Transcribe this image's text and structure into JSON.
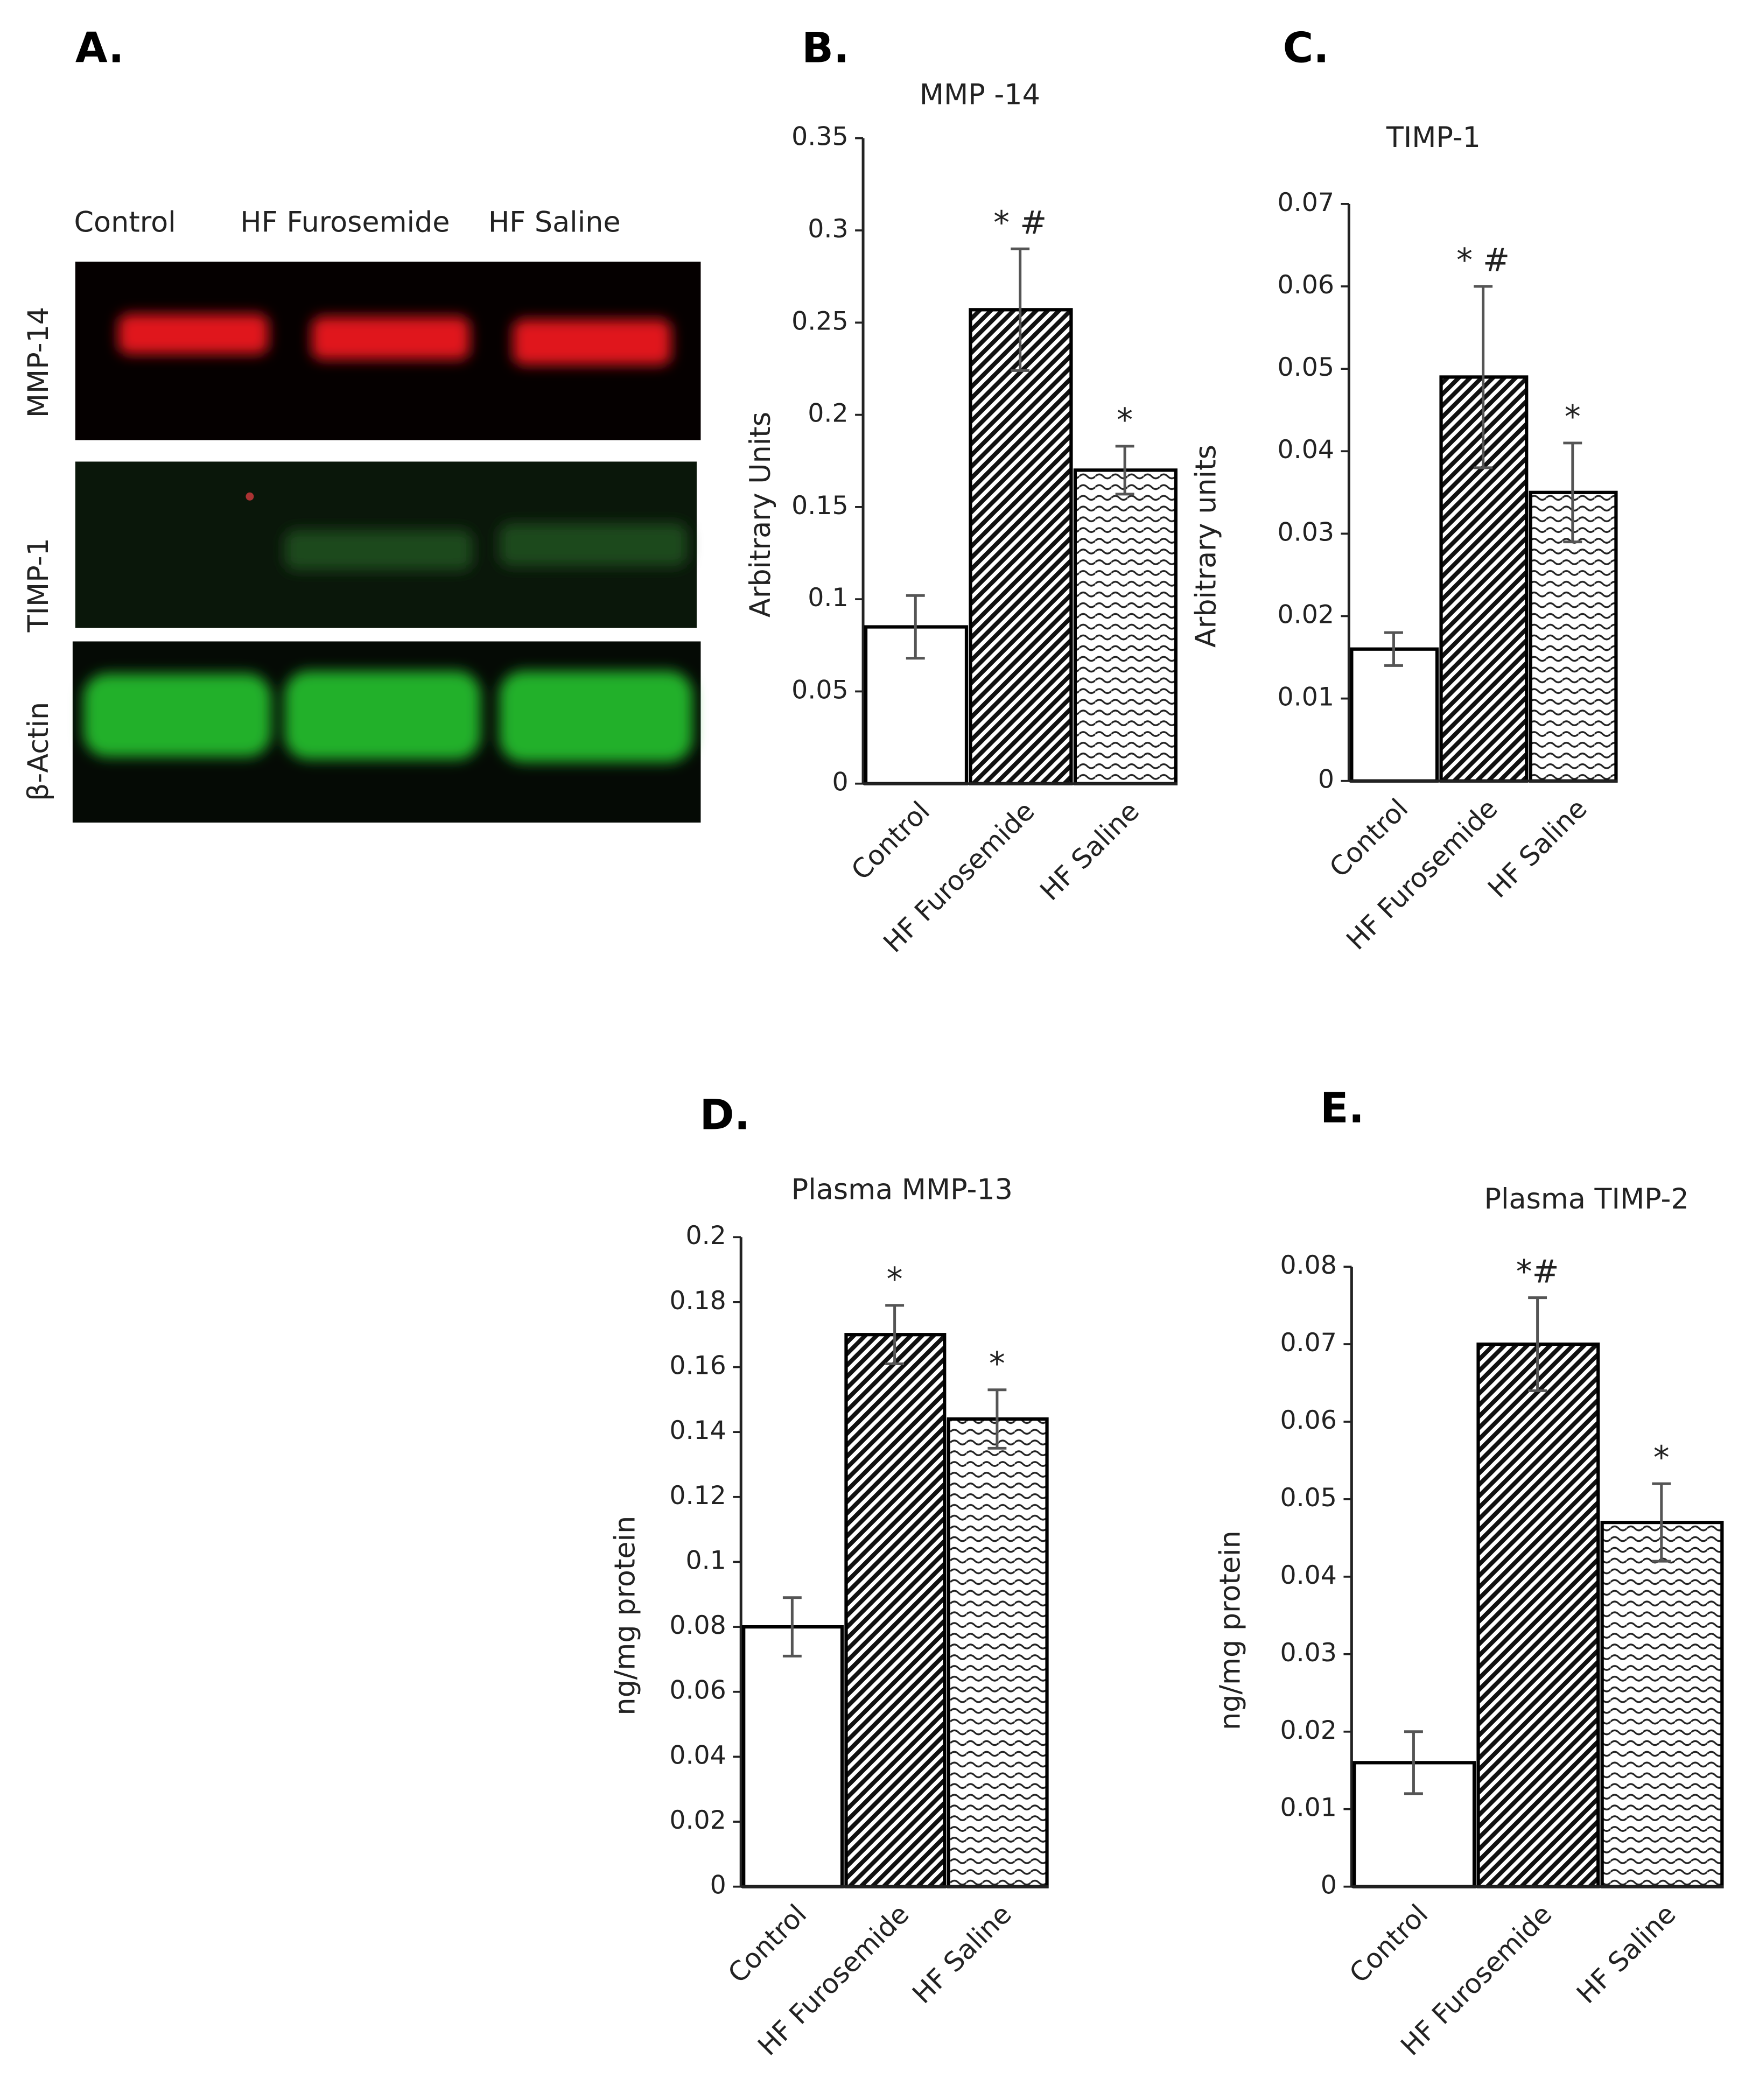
{
  "blot": {
    "label": "A.",
    "lanes": [
      "Control",
      "HF Furosemide",
      "HF Saline"
    ],
    "rows": [
      "MMP-14",
      "TIMP-1",
      "β-Actin"
    ]
  },
  "chart_data": [
    {
      "type": "bar",
      "label": "B.",
      "title": "MMP -14",
      "ylabel": "Arbitrary Units",
      "categories": [
        "Control",
        "HF Furosemide",
        "HF Saline"
      ],
      "values": [
        0.085,
        0.257,
        0.17
      ],
      "errors": [
        0.017,
        0.033,
        0.013
      ],
      "annotations": [
        null,
        "* #",
        "*"
      ],
      "fills": [
        "white",
        "hatch",
        "wave"
      ],
      "ylim": [
        0,
        0.35
      ],
      "yticks": [
        0,
        0.05,
        0.1,
        0.15,
        0.2,
        0.25,
        0.3,
        0.35
      ]
    },
    {
      "type": "bar",
      "label": "C.",
      "title": "TIMP-1",
      "ylabel": "Arbitrary units",
      "categories": [
        "Control",
        "HF Furosemide",
        "HF Saline"
      ],
      "values": [
        0.016,
        0.049,
        0.035
      ],
      "errors": [
        0.002,
        0.011,
        0.006
      ],
      "annotations": [
        null,
        "* #",
        "*"
      ],
      "fills": [
        "white",
        "hatch",
        "wave"
      ],
      "ylim": [
        0,
        0.07
      ],
      "yticks": [
        0,
        0.01,
        0.02,
        0.03,
        0.04,
        0.05,
        0.06,
        0.07
      ]
    },
    {
      "type": "bar",
      "label": "D.",
      "title": "Plasma MMP-13",
      "ylabel": "ng/mg protein",
      "categories": [
        "Control",
        "HF Furosemide",
        "HF Saline"
      ],
      "values": [
        0.08,
        0.17,
        0.144
      ],
      "errors": [
        0.009,
        0.009,
        0.009
      ],
      "annotations": [
        null,
        "*",
        "*"
      ],
      "fills": [
        "white",
        "hatch",
        "wave"
      ],
      "ylim": [
        0,
        0.2
      ],
      "yticks": [
        0,
        0.02,
        0.04,
        0.06,
        0.08,
        0.1,
        0.12,
        0.14,
        0.16,
        0.18,
        0.2
      ]
    },
    {
      "type": "bar",
      "label": "E.",
      "title": "Plasma TIMP-2",
      "ylabel": "ng/mg protein",
      "categories": [
        "Control",
        "HF Furosemide",
        "HF Saline"
      ],
      "values": [
        0.016,
        0.07,
        0.047
      ],
      "errors": [
        0.004,
        0.006,
        0.005
      ],
      "annotations": [
        null,
        "*#",
        "*"
      ],
      "fills": [
        "white",
        "hatch",
        "wave"
      ],
      "ylim": [
        0,
        0.08
      ],
      "yticks": [
        0,
        0.01,
        0.02,
        0.03,
        0.04,
        0.05,
        0.06,
        0.07,
        0.08
      ]
    }
  ]
}
